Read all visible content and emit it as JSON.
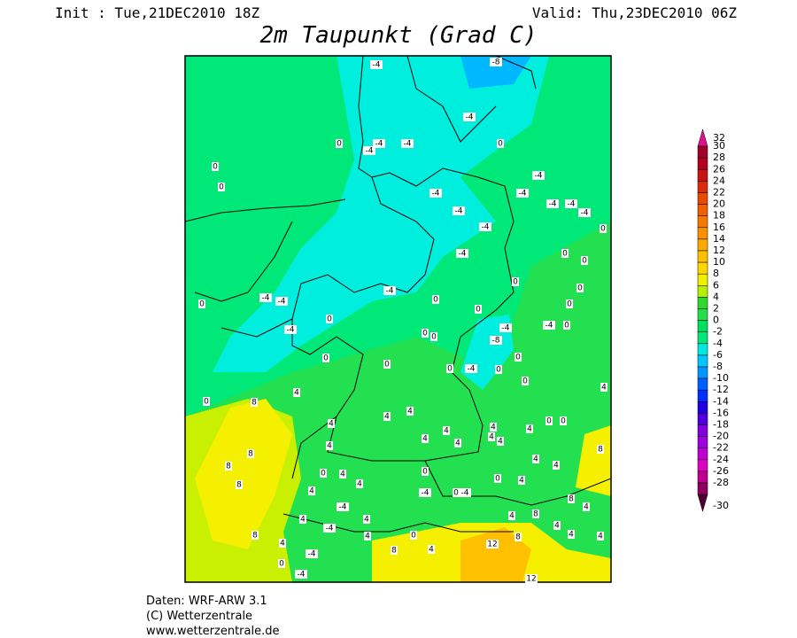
{
  "header": {
    "init": "Init : Tue,21DEC2010 18Z",
    "valid": "Valid: Thu,23DEC2010 06Z",
    "title": "2m Taupunkt (Grad C)"
  },
  "colorbar": {
    "levels": [
      32,
      30,
      28,
      26,
      24,
      22,
      20,
      18,
      16,
      14,
      12,
      10,
      8,
      6,
      4,
      2,
      0,
      -2,
      -4,
      -6,
      -8,
      -10,
      -12,
      -14,
      -16,
      -18,
      -20,
      -22,
      -24,
      -26,
      -28,
      -30
    ],
    "colors": [
      "#e0118c",
      "#a0002a",
      "#b4001e",
      "#c81414",
      "#dc2a0a",
      "#e84a00",
      "#f06000",
      "#f57800",
      "#fa9000",
      "#ffa800",
      "#ffc000",
      "#ffd700",
      "#f0f000",
      "#b8ee00",
      "#30d830",
      "#22e048",
      "#00e060",
      "#00e878",
      "#00e8e0",
      "#00c8ff",
      "#0096ff",
      "#0060ff",
      "#0030ff",
      "#2000e0",
      "#5000e0",
      "#8000e0",
      "#a000e0",
      "#c000d0",
      "#e000c0",
      "#c00090",
      "#900060",
      "#500030"
    ]
  },
  "contour_labels": [
    -4,
    -8,
    -4,
    0,
    -4,
    -4,
    -4,
    0,
    0,
    0,
    -4,
    -4,
    -4,
    -4,
    -4,
    -4,
    -4,
    -4,
    0,
    -4,
    0,
    0,
    -4,
    -4,
    -4,
    0,
    0,
    0,
    0,
    0,
    0,
    0,
    -4,
    -8,
    -4,
    0,
    0,
    -4,
    0,
    0,
    0,
    -4,
    0,
    0,
    0,
    0,
    4,
    4,
    8,
    0,
    4,
    4,
    4,
    0,
    0,
    4,
    4,
    4,
    4,
    4,
    4,
    4,
    4,
    8,
    8,
    8,
    8,
    0,
    4,
    0,
    4,
    4,
    4,
    4,
    4,
    -4,
    0,
    -4,
    0,
    8,
    4,
    -4,
    4,
    -4,
    4,
    0,
    4,
    4,
    8,
    4,
    4,
    4,
    12,
    8,
    4,
    -4,
    8,
    4,
    8,
    0,
    -4,
    12
  ],
  "footer": {
    "line1": "Daten: WRF-ARW 3.1",
    "line2": "(C) Wetterzentrale",
    "line3": "www.wetterzentrale.de"
  }
}
